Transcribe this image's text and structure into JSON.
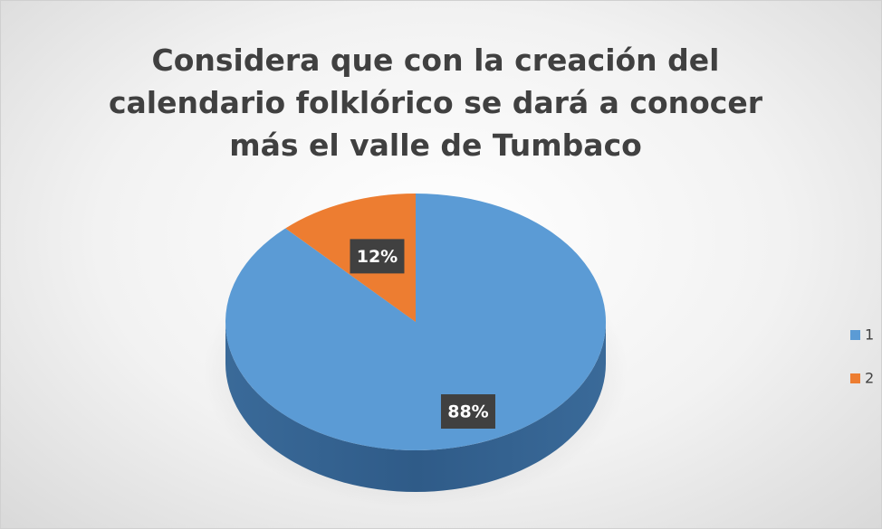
{
  "chart_data": {
    "type": "pie",
    "title": "Considera que con la creación del calendario folklórico se dará a conocer más el valle de Tumbaco",
    "categories": [
      "1",
      "2"
    ],
    "values": [
      88,
      12
    ],
    "value_labels": [
      "88%",
      "12%"
    ],
    "colors": [
      "#5b9bd5",
      "#ed7d31"
    ],
    "legend": "right"
  }
}
